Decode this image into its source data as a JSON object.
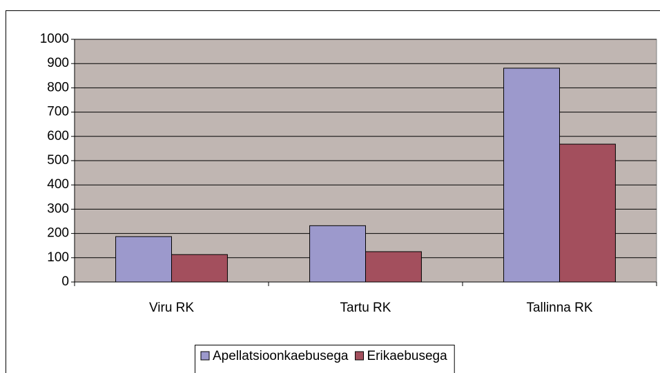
{
  "chart_data": {
    "type": "bar",
    "categories": [
      "Viru RK",
      "Tartu RK",
      "Tallinna RK"
    ],
    "series": [
      {
        "name": "Apellatsioonkaebusega",
        "color": "#9c99cc",
        "values": [
          187,
          232,
          881
        ]
      },
      {
        "name": "Erikaebusega",
        "color": "#a34f5d",
        "values": [
          113,
          125,
          568
        ]
      }
    ],
    "ylim": [
      0,
      1000
    ],
    "yticks": [
      0,
      100,
      200,
      300,
      400,
      500,
      600,
      700,
      800,
      900,
      1000
    ],
    "grid": true,
    "legend": "bottom"
  }
}
